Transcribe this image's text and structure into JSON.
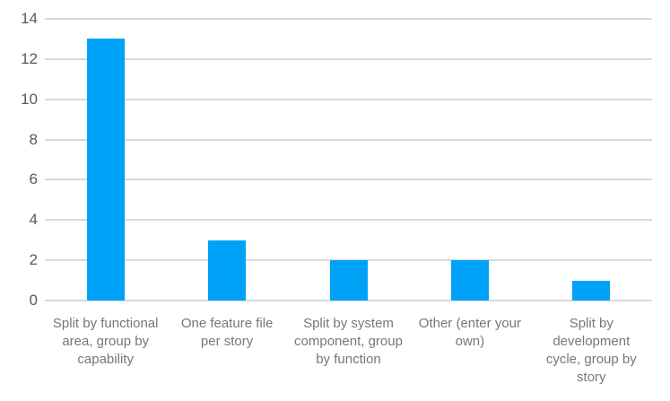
{
  "chart_data": {
    "type": "bar",
    "title": "",
    "xlabel": "",
    "ylabel": "",
    "categories": [
      "Split by functional area, group by capability",
      "One feature file per story",
      "Split by system component, group by function",
      "Other (enter your own)",
      "Split by development cycle, group by story"
    ],
    "values": [
      13,
      3,
      2,
      2,
      1
    ],
    "ylim": [
      0,
      14
    ],
    "yticks": [
      0,
      2,
      4,
      6,
      8,
      10,
      12,
      14
    ],
    "grid": true,
    "legend": false,
    "colors": {
      "bar": "#00a2f7",
      "gridline": "#d9d9d9",
      "y_tick_label": "#595959",
      "category_label": "#777777",
      "background": "#ffffff"
    }
  }
}
